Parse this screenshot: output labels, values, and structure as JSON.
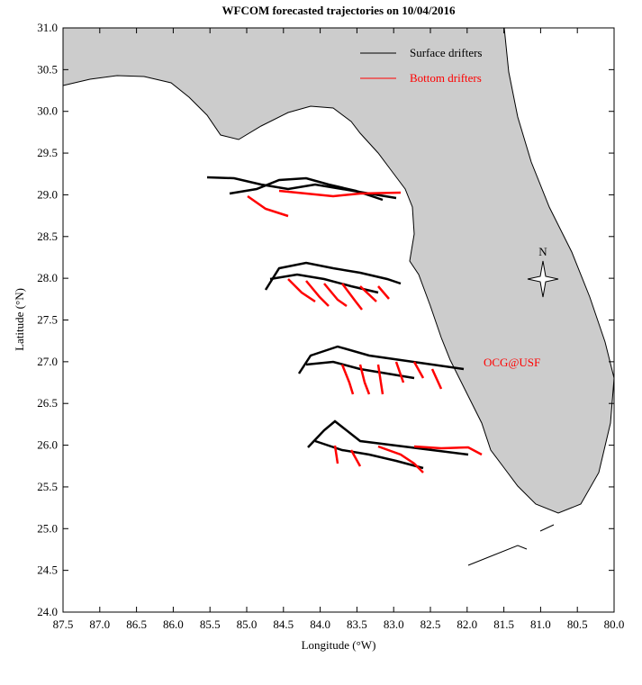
{
  "chart_data": {
    "type": "map",
    "title": "WFCOM forecasted trajectories on 10/04/2016",
    "x_label": "Longitude (°W)",
    "y_label": "Latitude (°N)",
    "xlim": [
      87.5,
      80.0
    ],
    "ylim": [
      24.0,
      31.0
    ],
    "xticks": [
      87.5,
      {
        "value": 87,
        "label": "87.0"
      },
      86.5,
      {
        "value": 86,
        "label": "86.0"
      },
      85.5,
      {
        "value": 85,
        "label": "85.0"
      },
      84.5,
      {
        "value": 84,
        "label": "84.0"
      },
      83.5,
      {
        "value": 83,
        "label": "83.0"
      },
      82.5,
      {
        "value": 82,
        "label": "82.0"
      },
      81.5,
      {
        "value": 81,
        "label": "81.0"
      },
      80.5,
      {
        "value": 80,
        "label": "80.0"
      }
    ],
    "yticks": [
      {
        "value": 24,
        "label": "24.0"
      },
      24.5,
      {
        "value": 25,
        "label": "25.0"
      },
      25.5,
      {
        "value": 26,
        "label": "26.0"
      },
      26.5,
      {
        "value": 27,
        "label": "27.0"
      },
      27.5,
      {
        "value": 28,
        "label": "28.0"
      },
      28.5,
      {
        "value": 29,
        "label": "29.0"
      },
      29.5,
      {
        "value": 30,
        "label": "30.0"
      },
      30.5,
      {
        "value": 31,
        "label": "31.0"
      }
    ],
    "series": [
      {
        "name": "Surface drifters",
        "color": "#000000"
      },
      {
        "name": "Bottom drifters",
        "color": "#ff0000"
      }
    ],
    "annotations": [
      "OCG@USF",
      "N"
    ]
  }
}
